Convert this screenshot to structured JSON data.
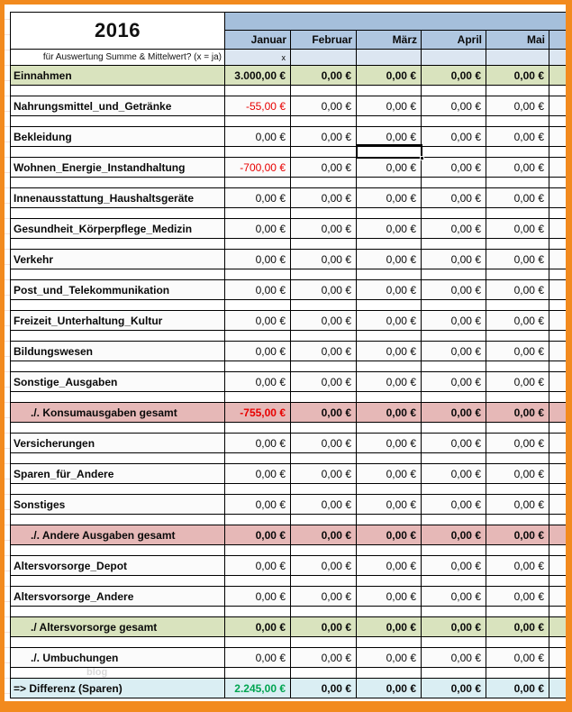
{
  "frame": {
    "border_color": "#F28A1E"
  },
  "header": {
    "year": "2016",
    "eval_label": "für Auswertung Summe & Mittelwert? (x = ja)",
    "months": [
      "Januar",
      "Februar",
      "März",
      "April",
      "Mai"
    ],
    "eval_values": [
      "x",
      "",
      "",
      "",
      ""
    ]
  },
  "colors": {
    "band_blue": "#A5BFDB",
    "month_header_blue": "#B0C7E1",
    "eval_row_blue": "#DCE6F1",
    "income_green": "#D9E3BE",
    "total_pink": "#E6B8B7",
    "diff_cyan": "#DAEEF3",
    "negative_red": "#E80000",
    "positive_green": "#00A550"
  },
  "rows": [
    {
      "label": "Einnahmen",
      "variant": "income",
      "indent": false,
      "values": [
        "3.000,00 €",
        "0,00 €",
        "0,00 €",
        "0,00 €",
        "0,00 €"
      ],
      "styles": [
        "",
        "",
        "",
        "",
        ""
      ]
    },
    {
      "label": "Nahrungsmittel_und_Getränke",
      "variant": "item",
      "indent": false,
      "values": [
        "-55,00 €",
        "0,00 €",
        "0,00 €",
        "0,00 €",
        "0,00 €"
      ],
      "styles": [
        "neg",
        "",
        "",
        "",
        ""
      ]
    },
    {
      "label": "Bekleidung",
      "variant": "item",
      "indent": false,
      "values": [
        "0,00 €",
        "0,00 €",
        "0,00 €",
        "0,00 €",
        "0,00 €"
      ],
      "styles": [
        "",
        "",
        "",
        "",
        ""
      ]
    },
    {
      "label": "Wohnen_Energie_Instandhaltung",
      "variant": "item",
      "indent": false,
      "values": [
        "-700,00 €",
        "0,00 €",
        "0,00 €",
        "0,00 €",
        "0,00 €"
      ],
      "styles": [
        "neg",
        "",
        "",
        "",
        ""
      ]
    },
    {
      "label": "Innenausstattung_Haushaltsgeräte",
      "variant": "item",
      "indent": false,
      "values": [
        "0,00 €",
        "0,00 €",
        "0,00 €",
        "0,00 €",
        "0,00 €"
      ],
      "styles": [
        "",
        "",
        "",
        "",
        ""
      ]
    },
    {
      "label": "Gesundheit_Körperpflege_Medizin",
      "variant": "item",
      "indent": false,
      "values": [
        "0,00 €",
        "0,00 €",
        "0,00 €",
        "0,00 €",
        "0,00 €"
      ],
      "styles": [
        "",
        "",
        "",
        "",
        ""
      ]
    },
    {
      "label": "Verkehr",
      "variant": "item",
      "indent": false,
      "values": [
        "0,00 €",
        "0,00 €",
        "0,00 €",
        "0,00 €",
        "0,00 €"
      ],
      "styles": [
        "",
        "",
        "",
        "",
        ""
      ]
    },
    {
      "label": "Post_und_Telekommunikation",
      "variant": "item",
      "indent": false,
      "values": [
        "0,00 €",
        "0,00 €",
        "0,00 €",
        "0,00 €",
        "0,00 €"
      ],
      "styles": [
        "",
        "",
        "",
        "",
        ""
      ]
    },
    {
      "label": "Freizeit_Unterhaltung_Kultur",
      "variant": "item",
      "indent": false,
      "values": [
        "0,00 €",
        "0,00 €",
        "0,00 €",
        "0,00 €",
        "0,00 €"
      ],
      "styles": [
        "",
        "",
        "",
        "",
        ""
      ]
    },
    {
      "label": "Bildungswesen",
      "variant": "item",
      "indent": false,
      "values": [
        "0,00 €",
        "0,00 €",
        "0,00 €",
        "0,00 €",
        "0,00 €"
      ],
      "styles": [
        "",
        "",
        "",
        "",
        ""
      ]
    },
    {
      "label": "Sonstige_Ausgaben",
      "variant": "item",
      "indent": false,
      "values": [
        "0,00 €",
        "0,00 €",
        "0,00 €",
        "0,00 €",
        "0,00 €"
      ],
      "styles": [
        "",
        "",
        "",
        "",
        ""
      ]
    },
    {
      "label": "./. Konsumausgaben gesamt",
      "variant": "total_pink",
      "indent": true,
      "values": [
        "-755,00 €",
        "0,00 €",
        "0,00 €",
        "0,00 €",
        "0,00 €"
      ],
      "styles": [
        "neg",
        "",
        "",
        "",
        ""
      ]
    },
    {
      "label": "Versicherungen",
      "variant": "item",
      "indent": false,
      "values": [
        "0,00 €",
        "0,00 €",
        "0,00 €",
        "0,00 €",
        "0,00 €"
      ],
      "styles": [
        "",
        "",
        "",
        "",
        ""
      ]
    },
    {
      "label": "Sparen_für_Andere",
      "variant": "item",
      "indent": false,
      "values": [
        "0,00 €",
        "0,00 €",
        "0,00 €",
        "0,00 €",
        "0,00 €"
      ],
      "styles": [
        "",
        "",
        "",
        "",
        ""
      ]
    },
    {
      "label": "Sonstiges",
      "variant": "item",
      "indent": false,
      "values": [
        "0,00 €",
        "0,00 €",
        "0,00 €",
        "0,00 €",
        "0,00 €"
      ],
      "styles": [
        "",
        "",
        "",
        "",
        ""
      ]
    },
    {
      "label": "./. Andere Ausgaben gesamt",
      "variant": "total_pink",
      "indent": true,
      "values": [
        "0,00 €",
        "0,00 €",
        "0,00 €",
        "0,00 €",
        "0,00 €"
      ],
      "styles": [
        "",
        "",
        "",
        "",
        ""
      ]
    },
    {
      "label": "Altersvorsorge_Depot",
      "variant": "item",
      "indent": false,
      "values": [
        "0,00 €",
        "0,00 €",
        "0,00 €",
        "0,00 €",
        "0,00 €"
      ],
      "styles": [
        "",
        "",
        "",
        "",
        ""
      ]
    },
    {
      "label": "Altersvorsorge_Andere",
      "variant": "item",
      "indent": false,
      "values": [
        "0,00 €",
        "0,00 €",
        "0,00 €",
        "0,00 €",
        "0,00 €"
      ],
      "styles": [
        "",
        "",
        "",
        "",
        ""
      ]
    },
    {
      "label": "./ Altersvorsorge gesamt",
      "variant": "total_green",
      "indent": true,
      "values": [
        "0,00 €",
        "0,00 €",
        "0,00 €",
        "0,00 €",
        "0,00 €"
      ],
      "styles": [
        "",
        "",
        "",
        "",
        ""
      ]
    },
    {
      "label": "./. Umbuchungen",
      "variant": "transfer",
      "indent": true,
      "values": [
        "0,00 €",
        "0,00 €",
        "0,00 €",
        "0,00 €",
        "0,00 €"
      ],
      "styles": [
        "",
        "",
        "",
        "",
        ""
      ]
    },
    {
      "label": "=> Differenz (Sparen)",
      "variant": "diff",
      "indent": false,
      "values": [
        "2.245,00 €",
        "0,00 €",
        "0,00 €",
        "0,00 €",
        "0,00 €"
      ],
      "styles": [
        "pos",
        "",
        "",
        "",
        ""
      ]
    }
  ],
  "selection": {
    "after_row": 2,
    "column": 2
  },
  "watermark": {
    "after_row": 19,
    "text": "blog"
  }
}
